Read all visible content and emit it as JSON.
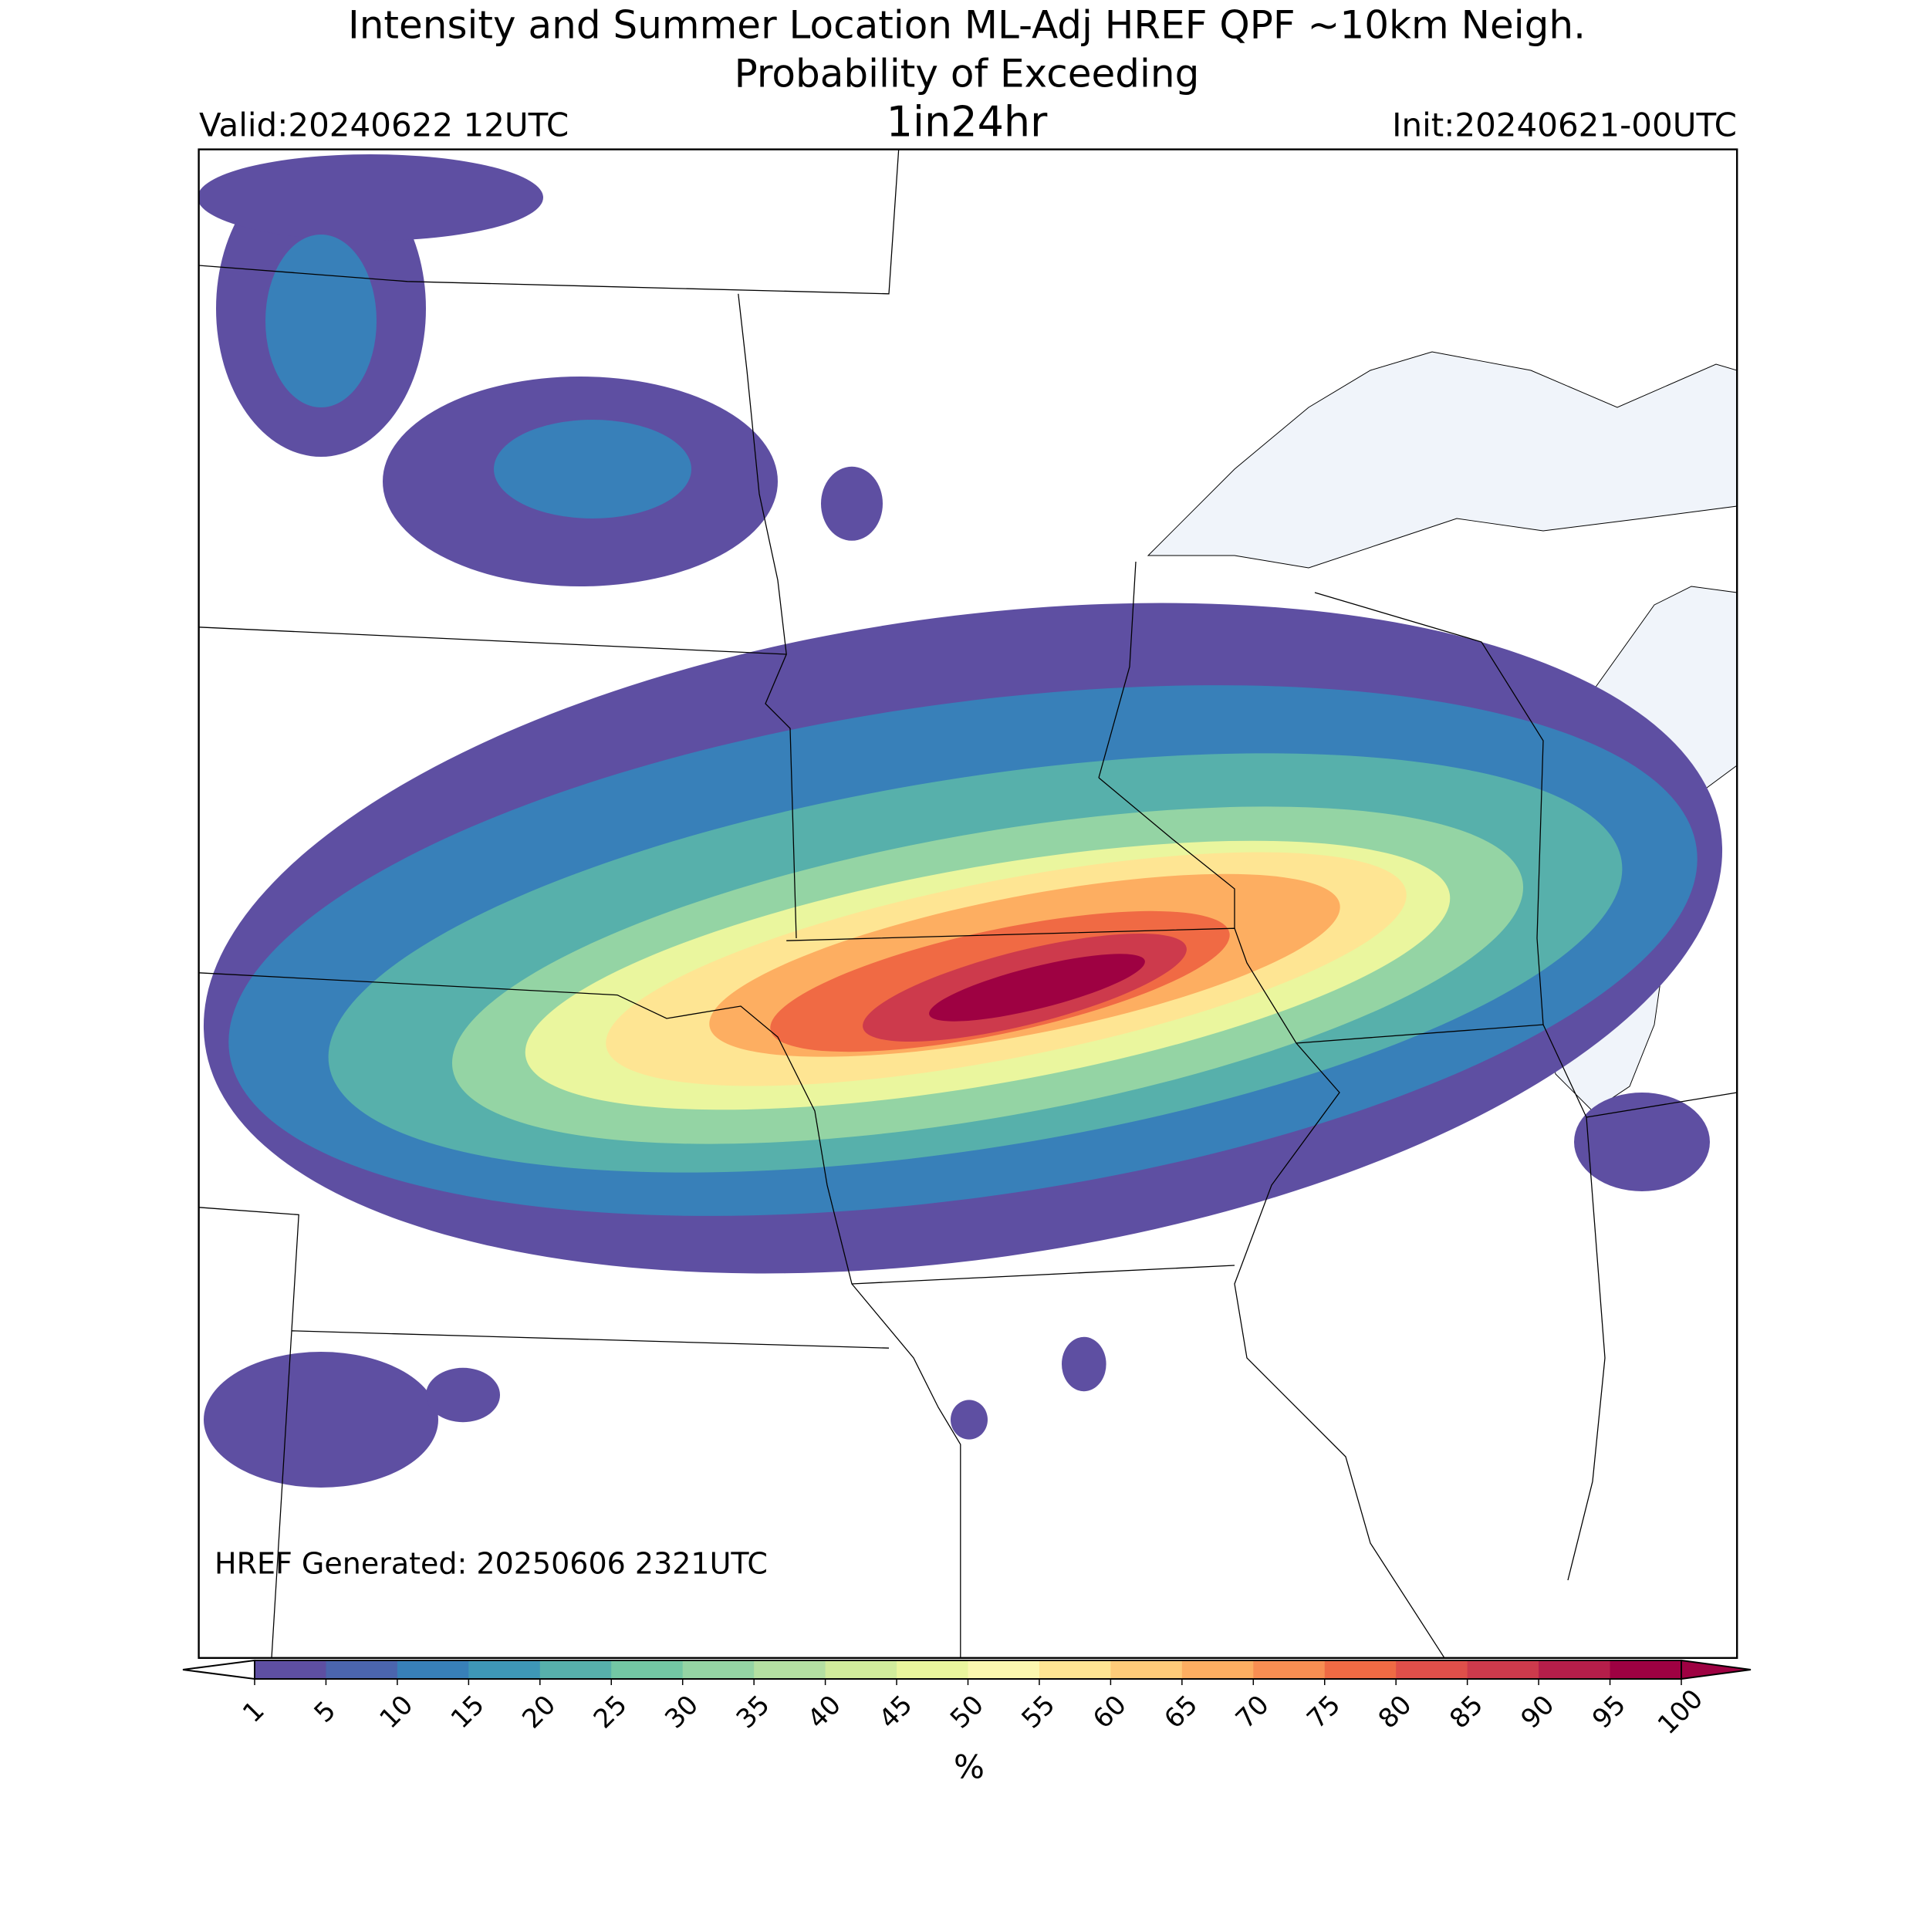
{
  "header": {
    "title": "Intensity and Summer Location ML-Adj HREF QPF ~10km Neigh.",
    "subtitle": "Probability of Exceeding",
    "valid": "Valid:20240622 12UTC",
    "threshold": "1in24hr",
    "init": "Init:20240621-00UTC"
  },
  "map": {
    "annotation": "HREF Generated: 20250606 2321UTC"
  },
  "colorbar": {
    "label": "%",
    "ticks": [
      1,
      5,
      10,
      15,
      20,
      25,
      30,
      35,
      40,
      45,
      50,
      55,
      60,
      65,
      70,
      75,
      80,
      85,
      90,
      95,
      100
    ],
    "colors": [
      "#5e4fa2",
      "#4b65ae",
      "#3880b9",
      "#3e97b7",
      "#57b0ab",
      "#73c7a4",
      "#94d4a4",
      "#b4e0a2",
      "#d1ec9c",
      "#eaf69e",
      "#fbf8b0",
      "#fee593",
      "#fecb79",
      "#fdae61",
      "#f98e52",
      "#f06a44",
      "#e04f4a",
      "#cd3a4c",
      "#b51e4a",
      "#9e0142"
    ],
    "under_color": "#ffffff",
    "over_color": "#9e0142"
  }
}
